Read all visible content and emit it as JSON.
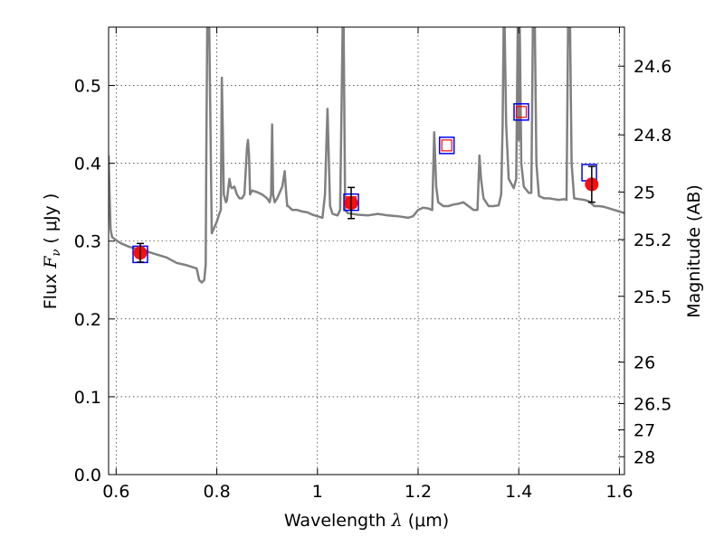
{
  "chart_data": {
    "type": "line",
    "title": "",
    "xlabel": {
      "prefix": "Wavelength  ",
      "symbol": "λ",
      "unit": " (μm)"
    },
    "ylabel": {
      "prefix": "Flux  ",
      "symbol": "F",
      "sub": "ν",
      "unit": "  ( μJy )"
    },
    "y2label": "Magnitude (AB)",
    "xlim": [
      0.585,
      1.61
    ],
    "ylim": [
      0.0,
      0.575
    ],
    "grid": true,
    "x_ticks": [
      {
        "value": 0.6,
        "label": "0.6"
      },
      {
        "value": 0.8,
        "label": "0.8"
      },
      {
        "value": 1.0,
        "label": "1"
      },
      {
        "value": 1.2,
        "label": "1.2"
      },
      {
        "value": 1.4,
        "label": "1.4"
      },
      {
        "value": 1.6,
        "label": "1.6"
      }
    ],
    "y_ticks": [
      {
        "value": 0.0,
        "label": "0.0"
      },
      {
        "value": 0.1,
        "label": "0.1"
      },
      {
        "value": 0.2,
        "label": "0.2"
      },
      {
        "value": 0.3,
        "label": "0.3"
      },
      {
        "value": 0.4,
        "label": "0.4"
      },
      {
        "value": 0.5,
        "label": "0.5"
      }
    ],
    "y2_ticks": [
      {
        "label": "24.6"
      },
      {
        "label": "24.8"
      },
      {
        "label": "25"
      },
      {
        "label": "25.2"
      },
      {
        "label": "25.5"
      },
      {
        "label": "26"
      },
      {
        "label": "26.5"
      },
      {
        "label": "27"
      },
      {
        "label": "28"
      }
    ],
    "model_spectrum": {
      "color": "#808080",
      "x": [
        0.585,
        0.587,
        0.589,
        0.592,
        0.598,
        0.61,
        0.625,
        0.64,
        0.66,
        0.68,
        0.7,
        0.72,
        0.74,
        0.76,
        0.765,
        0.77,
        0.775,
        0.778,
        0.779,
        0.781,
        0.783,
        0.785,
        0.79,
        0.8,
        0.805,
        0.808,
        0.81,
        0.812,
        0.814,
        0.816,
        0.818,
        0.82,
        0.825,
        0.828,
        0.83,
        0.835,
        0.84,
        0.845,
        0.85,
        0.855,
        0.86,
        0.862,
        0.864,
        0.866,
        0.87,
        0.88,
        0.89,
        0.9,
        0.905,
        0.908,
        0.91,
        0.912,
        0.915,
        0.92,
        0.93,
        0.935,
        0.938,
        0.94,
        0.942,
        0.945,
        0.95,
        0.96,
        0.97,
        0.98,
        0.99,
        1.0,
        1.01,
        1.015,
        1.018,
        1.02,
        1.022,
        1.025,
        1.03,
        1.04,
        1.045,
        1.048,
        1.05,
        1.052,
        1.055,
        1.06,
        1.07,
        1.08,
        1.1,
        1.12,
        1.14,
        1.16,
        1.18,
        1.19,
        1.2,
        1.21,
        1.22,
        1.228,
        1.232,
        1.236,
        1.24,
        1.25,
        1.26,
        1.27,
        1.28,
        1.29,
        1.3,
        1.31,
        1.318,
        1.32,
        1.322,
        1.325,
        1.33,
        1.34,
        1.35,
        1.36,
        1.365,
        1.368,
        1.37,
        1.372,
        1.375,
        1.38,
        1.39,
        1.395,
        1.398,
        1.4,
        1.402,
        1.405,
        1.41,
        1.42,
        1.425,
        1.428,
        1.43,
        1.432,
        1.435,
        1.44,
        1.45,
        1.46,
        1.47,
        1.48,
        1.49,
        1.495,
        1.498,
        1.5,
        1.502,
        1.505,
        1.51,
        1.52,
        1.53,
        1.54,
        1.55,
        1.56,
        1.57,
        1.58,
        1.59,
        1.6,
        1.61
      ],
      "y": [
        0.41,
        0.36,
        0.315,
        0.305,
        0.302,
        0.297,
        0.293,
        0.29,
        0.287,
        0.283,
        0.279,
        0.272,
        0.269,
        0.265,
        0.25,
        0.247,
        0.25,
        0.27,
        0.4,
        0.575,
        0.575,
        0.575,
        0.31,
        0.325,
        0.335,
        0.34,
        0.51,
        0.44,
        0.36,
        0.355,
        0.35,
        0.352,
        0.38,
        0.37,
        0.368,
        0.37,
        0.36,
        0.355,
        0.355,
        0.36,
        0.42,
        0.43,
        0.41,
        0.36,
        0.365,
        0.363,
        0.36,
        0.355,
        0.35,
        0.36,
        0.45,
        0.36,
        0.35,
        0.355,
        0.37,
        0.39,
        0.36,
        0.345,
        0.345,
        0.343,
        0.34,
        0.34,
        0.338,
        0.337,
        0.334,
        0.332,
        0.33,
        0.36,
        0.43,
        0.47,
        0.42,
        0.345,
        0.335,
        0.333,
        0.34,
        0.48,
        0.575,
        0.575,
        0.34,
        0.336,
        0.335,
        0.334,
        0.333,
        0.335,
        0.333,
        0.332,
        0.33,
        0.332,
        0.34,
        0.343,
        0.342,
        0.34,
        0.44,
        0.37,
        0.35,
        0.345,
        0.345,
        0.347,
        0.348,
        0.35,
        0.345,
        0.34,
        0.34,
        0.375,
        0.41,
        0.38,
        0.355,
        0.345,
        0.345,
        0.346,
        0.36,
        0.45,
        0.575,
        0.575,
        0.45,
        0.38,
        0.368,
        0.38,
        0.575,
        0.43,
        0.575,
        0.4,
        0.37,
        0.362,
        0.362,
        0.575,
        0.575,
        0.575,
        0.4,
        0.358,
        0.355,
        0.355,
        0.354,
        0.353,
        0.354,
        0.353,
        0.575,
        0.575,
        0.575,
        0.4,
        0.355,
        0.354,
        0.353,
        0.351,
        0.345,
        0.345,
        0.344,
        0.342,
        0.34,
        0.338,
        0.336
      ]
    },
    "series": [
      {
        "marker": "open-square",
        "color": "#0000ff",
        "x": [
          0.648,
          1.067,
          1.257,
          1.405,
          1.54
        ],
        "y": [
          0.283,
          0.35,
          0.423,
          0.466,
          0.388
        ]
      },
      {
        "marker": "small-open-square",
        "color": "#ff0000",
        "x": [
          1.067,
          1.257,
          1.405
        ],
        "y": [
          0.35,
          0.423,
          0.466
        ]
      },
      {
        "marker": "filled-circle",
        "color": "#ff0000",
        "x": [
          0.648,
          1.067,
          1.545
        ],
        "y": [
          0.285,
          0.349,
          0.373
        ],
        "yerr": [
          0.012,
          0.02,
          0.023
        ]
      }
    ]
  }
}
